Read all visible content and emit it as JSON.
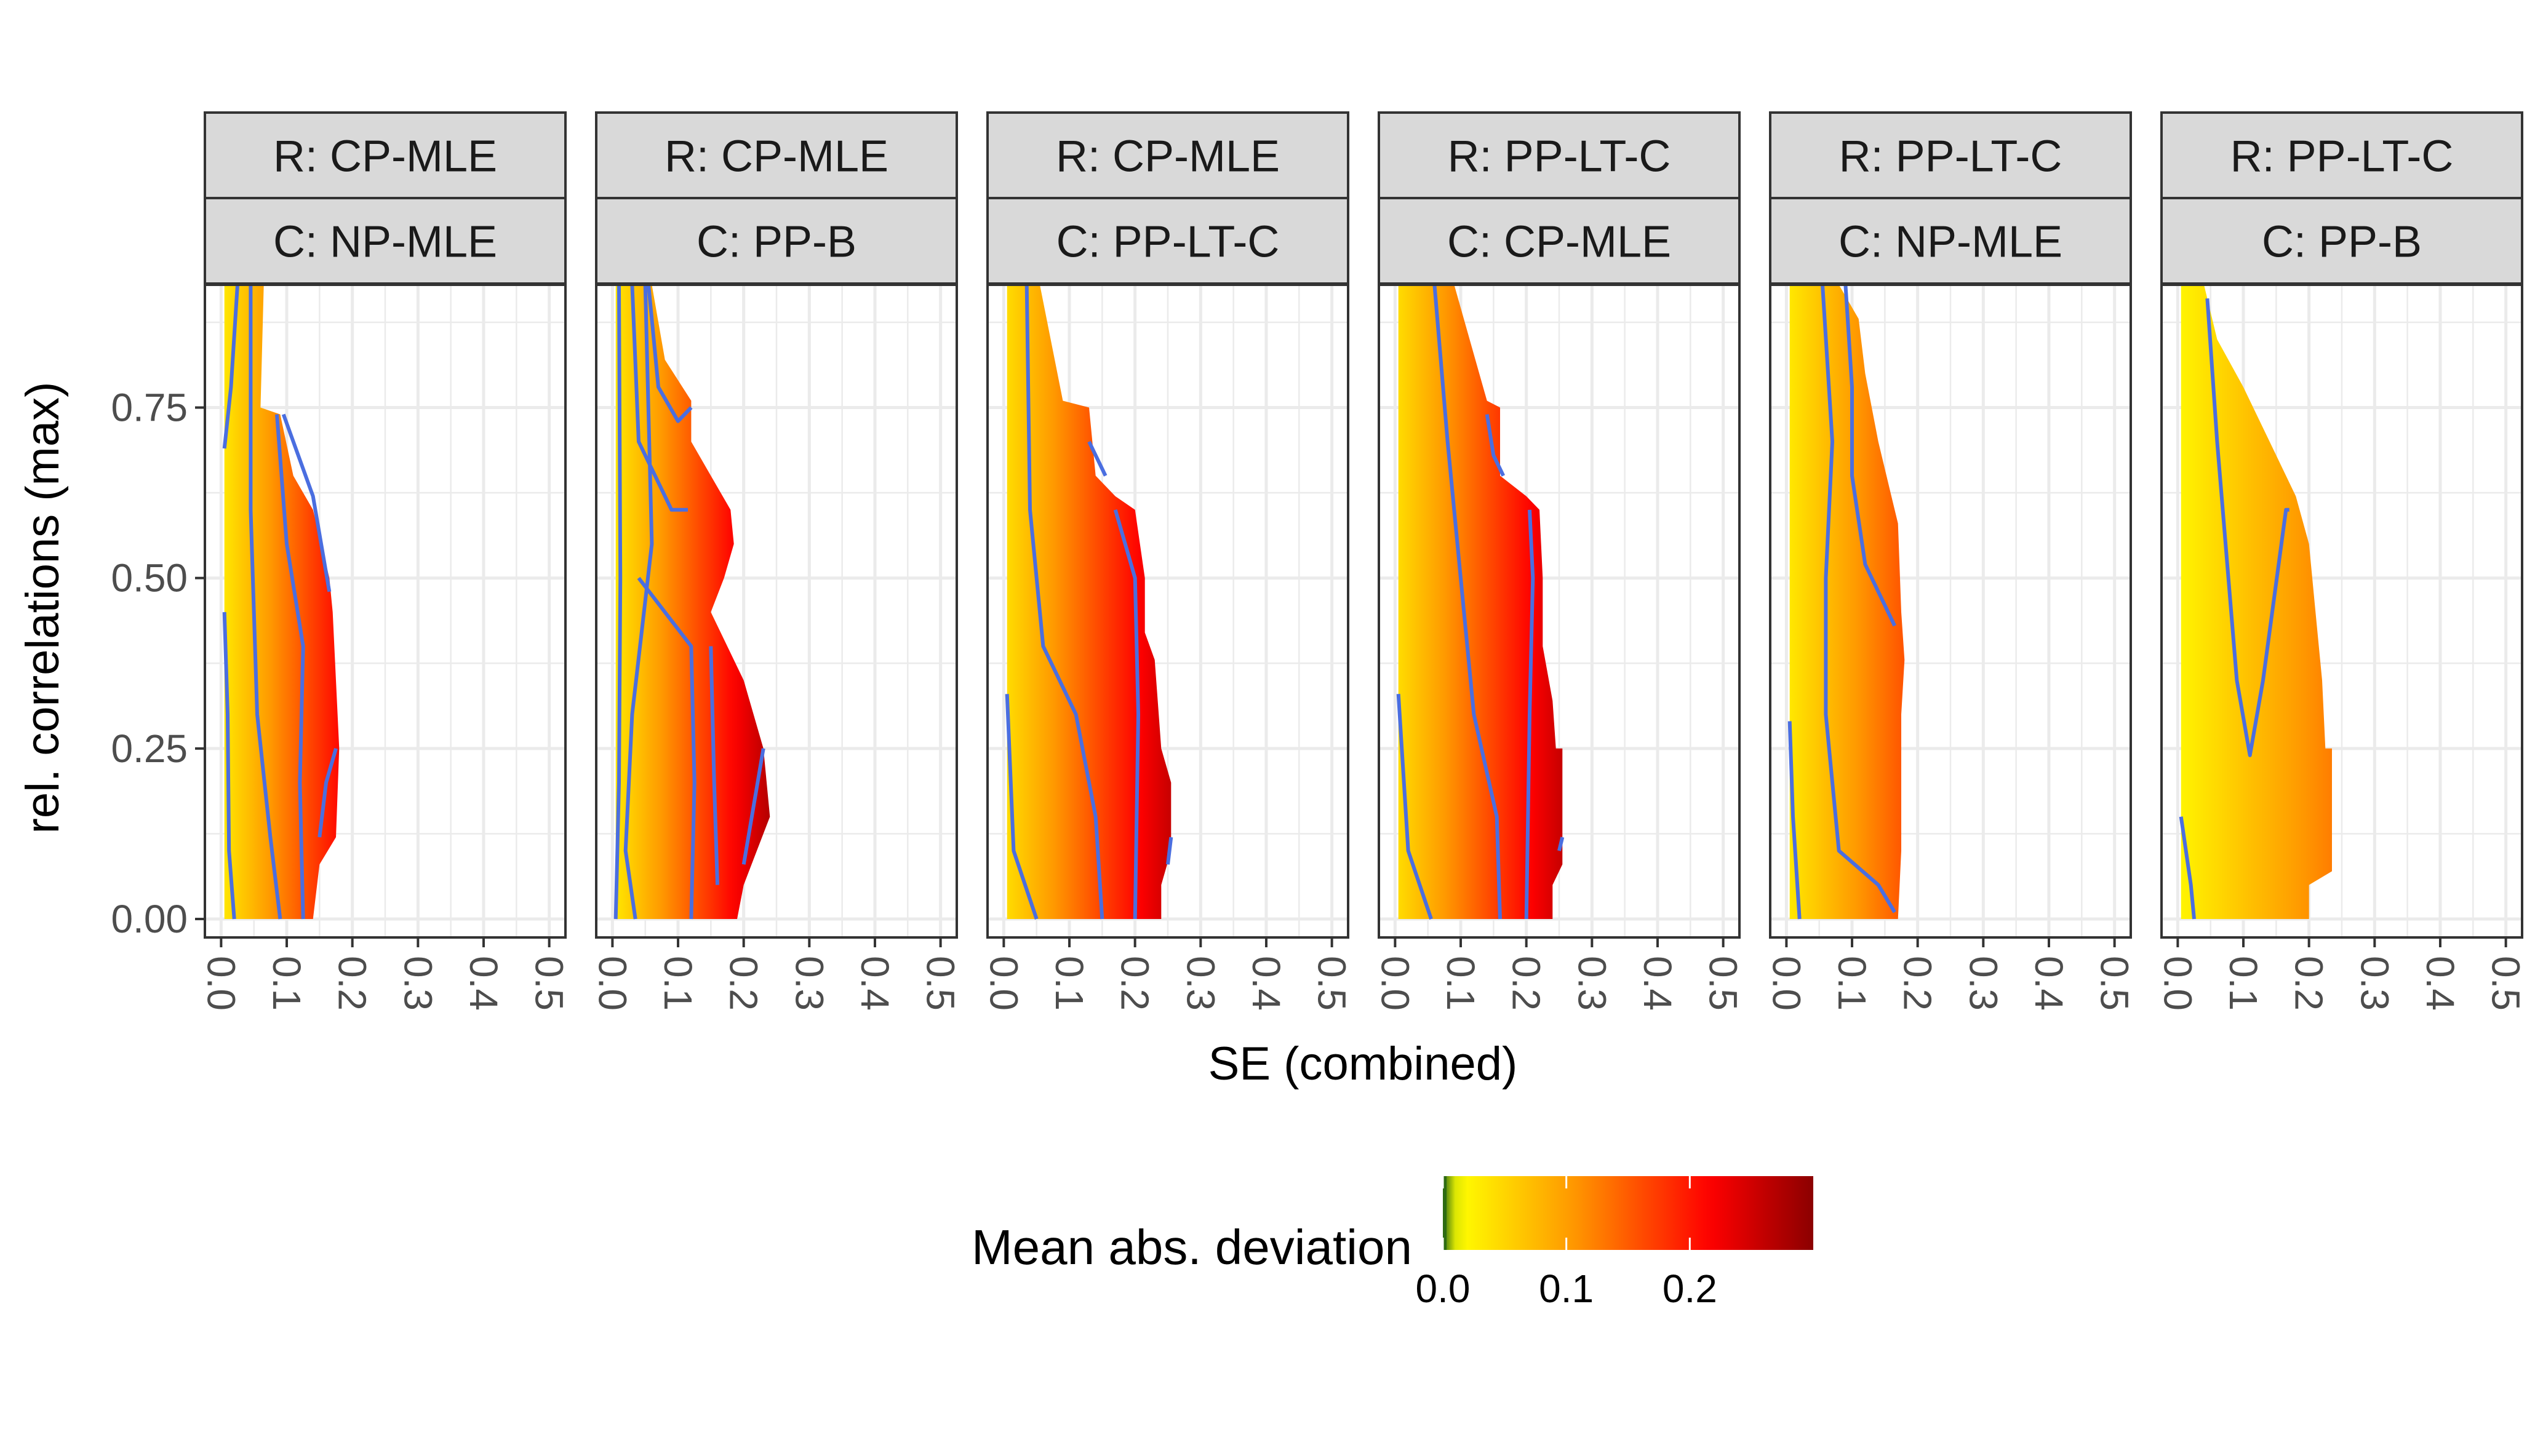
{
  "chart_data": {
    "type": "heatmap",
    "xlabel": "SE (combined)",
    "ylabel": "rel. correlations (max)",
    "xlim": [
      0,
      0.5
    ],
    "ylim": [
      0,
      0.93
    ],
    "x_ticks": [
      "0.0",
      "0.1",
      "0.2",
      "0.3",
      "0.4",
      "0.5"
    ],
    "y_ticks": [
      "0.00",
      "0.25",
      "0.50",
      "0.75"
    ],
    "x_tick_values": [
      0,
      0.1,
      0.2,
      0.3,
      0.4,
      0.5
    ],
    "y_tick_values": [
      0,
      0.25,
      0.5,
      0.75
    ],
    "grid": true,
    "legend": {
      "title": "Mean abs. deviation",
      "position": "bottom",
      "range": [
        0,
        0.3
      ],
      "ticks": [
        "0.0",
        "0.1",
        "0.2"
      ],
      "tick_values": [
        0,
        0.1,
        0.2
      ],
      "colors": [
        "#2e6b12",
        "#ffff00",
        "#ff9900",
        "#ff0000",
        "#8b0000"
      ]
    },
    "contour_color": "#4a6ee0",
    "panels": [
      {
        "strip_top": "R: CP-MLE",
        "strip_bottom": "C: NP-MLE",
        "region": [
          [
            0.005,
            0
          ],
          [
            0.005,
            0.93
          ],
          [
            0.065,
            0.93
          ],
          [
            0.06,
            0.75
          ],
          [
            0.09,
            0.74
          ],
          [
            0.11,
            0.65
          ],
          [
            0.14,
            0.6
          ],
          [
            0.165,
            0.5
          ],
          [
            0.17,
            0.45
          ],
          [
            0.175,
            0.35
          ],
          [
            0.18,
            0.25
          ],
          [
            0.175,
            0.12
          ],
          [
            0.15,
            0.08
          ],
          [
            0.14,
            0
          ]
        ],
        "contours": [
          [
            [
              0.005,
              0.69
            ],
            [
              0.015,
              0.78
            ],
            [
              0.025,
              0.93
            ]
          ],
          [
            [
              0.005,
              0.45
            ],
            [
              0.01,
              0.3
            ],
            [
              0.012,
              0.1
            ],
            [
              0.02,
              0
            ]
          ],
          [
            [
              0.045,
              0.93
            ],
            [
              0.045,
              0.6
            ],
            [
              0.055,
              0.3
            ],
            [
              0.075,
              0.12
            ],
            [
              0.09,
              0
            ]
          ],
          [
            [
              0.085,
              0.74
            ],
            [
              0.1,
              0.55
            ],
            [
              0.125,
              0.4
            ],
            [
              0.12,
              0.2
            ],
            [
              0.125,
              0
            ]
          ],
          [
            [
              0.095,
              0.74
            ],
            [
              0.14,
              0.62
            ],
            [
              0.165,
              0.48
            ]
          ],
          [
            [
              0.15,
              0.12
            ],
            [
              0.16,
              0.2
            ],
            [
              0.175,
              0.25
            ]
          ]
        ],
        "field": {
          "base": 0.03,
          "slope": 1.0,
          "yslope": 0.05
        }
      },
      {
        "strip_top": "R: CP-MLE",
        "strip_bottom": "C: PP-B",
        "region": [
          [
            0.005,
            0
          ],
          [
            0.005,
            0.93
          ],
          [
            0.06,
            0.93
          ],
          [
            0.08,
            0.82
          ],
          [
            0.12,
            0.76
          ],
          [
            0.12,
            0.7
          ],
          [
            0.15,
            0.65
          ],
          [
            0.18,
            0.6
          ],
          [
            0.185,
            0.55
          ],
          [
            0.17,
            0.5
          ],
          [
            0.15,
            0.45
          ],
          [
            0.2,
            0.35
          ],
          [
            0.23,
            0.25
          ],
          [
            0.24,
            0.15
          ],
          [
            0.22,
            0.1
          ],
          [
            0.2,
            0.05
          ],
          [
            0.19,
            0
          ]
        ],
        "contours": [
          [
            [
              0.01,
              0.93
            ],
            [
              0.012,
              0.5
            ],
            [
              0.01,
              0.2
            ],
            [
              0.005,
              0
            ]
          ],
          [
            [
              0.03,
              0.93
            ],
            [
              0.04,
              0.7
            ],
            [
              0.09,
              0.6
            ],
            [
              0.115,
              0.6
            ]
          ],
          [
            [
              0.055,
              0.93
            ],
            [
              0.07,
              0.78
            ],
            [
              0.1,
              0.73
            ],
            [
              0.12,
              0.75
            ]
          ],
          [
            [
              0.05,
              0.93
            ],
            [
              0.06,
              0.55
            ],
            [
              0.03,
              0.3
            ],
            [
              0.02,
              0.1
            ],
            [
              0.035,
              0
            ]
          ],
          [
            [
              0.04,
              0.5
            ],
            [
              0.12,
              0.4
            ],
            [
              0.125,
              0.2
            ],
            [
              0.12,
              0
            ]
          ],
          [
            [
              0.15,
              0.4
            ],
            [
              0.155,
              0.2
            ],
            [
              0.16,
              0.05
            ]
          ],
          [
            [
              0.2,
              0.08
            ],
            [
              0.23,
              0.25
            ]
          ]
        ],
        "field": {
          "base": 0.03,
          "slope": 1.0,
          "yslope": 0.03
        }
      },
      {
        "strip_top": "R: CP-MLE",
        "strip_bottom": "C: PP-LT-C",
        "region": [
          [
            0.005,
            0
          ],
          [
            0.005,
            0.93
          ],
          [
            0.055,
            0.93
          ],
          [
            0.09,
            0.76
          ],
          [
            0.13,
            0.75
          ],
          [
            0.14,
            0.65
          ],
          [
            0.17,
            0.62
          ],
          [
            0.2,
            0.6
          ],
          [
            0.215,
            0.5
          ],
          [
            0.215,
            0.42
          ],
          [
            0.23,
            0.38
          ],
          [
            0.24,
            0.25
          ],
          [
            0.255,
            0.2
          ],
          [
            0.255,
            0.1
          ],
          [
            0.24,
            0.05
          ],
          [
            0.24,
            0
          ]
        ],
        "contours": [
          [
            [
              0.035,
              0.93
            ],
            [
              0.04,
              0.6
            ],
            [
              0.06,
              0.4
            ],
            [
              0.11,
              0.3
            ],
            [
              0.14,
              0.15
            ],
            [
              0.15,
              0
            ]
          ],
          [
            [
              0.005,
              0.33
            ],
            [
              0.015,
              0.1
            ],
            [
              0.05,
              0
            ]
          ],
          [
            [
              0.13,
              0.7
            ],
            [
              0.155,
              0.65
            ]
          ],
          [
            [
              0.17,
              0.6
            ],
            [
              0.2,
              0.5
            ],
            [
              0.205,
              0.3
            ],
            [
              0.2,
              0
            ]
          ],
          [
            [
              0.25,
              0.08
            ],
            [
              0.255,
              0.12
            ]
          ]
        ],
        "field": {
          "base": 0.04,
          "slope": 0.85,
          "yslope": 0.02
        }
      },
      {
        "strip_top": "R: PP-LT-C",
        "strip_bottom": "C: CP-MLE",
        "region": [
          [
            0.005,
            0
          ],
          [
            0.005,
            0.93
          ],
          [
            0.09,
            0.93
          ],
          [
            0.14,
            0.76
          ],
          [
            0.16,
            0.75
          ],
          [
            0.16,
            0.65
          ],
          [
            0.2,
            0.62
          ],
          [
            0.22,
            0.6
          ],
          [
            0.225,
            0.5
          ],
          [
            0.225,
            0.4
          ],
          [
            0.24,
            0.32
          ],
          [
            0.245,
            0.25
          ],
          [
            0.255,
            0.25
          ],
          [
            0.255,
            0.08
          ],
          [
            0.24,
            0.05
          ],
          [
            0.24,
            0
          ]
        ],
        "contours": [
          [
            [
              0.06,
              0.93
            ],
            [
              0.08,
              0.7
            ],
            [
              0.1,
              0.5
            ],
            [
              0.12,
              0.3
            ],
            [
              0.155,
              0.15
            ],
            [
              0.16,
              0
            ]
          ],
          [
            [
              0.005,
              0.33
            ],
            [
              0.02,
              0.1
            ],
            [
              0.055,
              0
            ]
          ],
          [
            [
              0.14,
              0.74
            ],
            [
              0.15,
              0.68
            ],
            [
              0.165,
              0.65
            ]
          ],
          [
            [
              0.205,
              0.6
            ],
            [
              0.21,
              0.5
            ],
            [
              0.205,
              0.3
            ],
            [
              0.2,
              0
            ]
          ],
          [
            [
              0.25,
              0.1
            ],
            [
              0.255,
              0.12
            ]
          ]
        ],
        "field": {
          "base": 0.04,
          "slope": 0.85,
          "yslope": 0.02
        }
      },
      {
        "strip_top": "R: PP-LT-C",
        "strip_bottom": "C: NP-MLE",
        "region": [
          [
            0.005,
            0
          ],
          [
            0.005,
            0.93
          ],
          [
            0.08,
            0.93
          ],
          [
            0.11,
            0.88
          ],
          [
            0.12,
            0.8
          ],
          [
            0.14,
            0.7
          ],
          [
            0.16,
            0.62
          ],
          [
            0.17,
            0.58
          ],
          [
            0.175,
            0.45
          ],
          [
            0.18,
            0.38
          ],
          [
            0.175,
            0.3
          ],
          [
            0.175,
            0.1
          ],
          [
            0.17,
            0
          ]
        ],
        "contours": [
          [
            [
              0.005,
              0.29
            ],
            [
              0.01,
              0.15
            ],
            [
              0.02,
              0
            ]
          ],
          [
            [
              0.055,
              0.93
            ],
            [
              0.07,
              0.7
            ],
            [
              0.06,
              0.5
            ],
            [
              0.06,
              0.3
            ],
            [
              0.08,
              0.1
            ],
            [
              0.14,
              0.05
            ],
            [
              0.165,
              0.01
            ]
          ],
          [
            [
              0.09,
              0.93
            ],
            [
              0.1,
              0.78
            ],
            [
              0.1,
              0.65
            ],
            [
              0.12,
              0.52
            ],
            [
              0.165,
              0.43
            ]
          ]
        ],
        "field": {
          "base": 0.03,
          "slope": 0.7,
          "yslope": 0.02
        }
      },
      {
        "strip_top": "R: PP-LT-C",
        "strip_bottom": "C: PP-B",
        "region": [
          [
            0.005,
            0
          ],
          [
            0.005,
            0.93
          ],
          [
            0.04,
            0.93
          ],
          [
            0.06,
            0.85
          ],
          [
            0.1,
            0.78
          ],
          [
            0.14,
            0.7
          ],
          [
            0.18,
            0.62
          ],
          [
            0.2,
            0.55
          ],
          [
            0.21,
            0.45
          ],
          [
            0.22,
            0.35
          ],
          [
            0.225,
            0.25
          ],
          [
            0.235,
            0.25
          ],
          [
            0.235,
            0.07
          ],
          [
            0.2,
            0.05
          ],
          [
            0.2,
            0
          ]
        ],
        "contours": [
          [
            [
              0.005,
              0.15
            ],
            [
              0.02,
              0.05
            ],
            [
              0.025,
              0
            ]
          ],
          [
            [
              0.045,
              0.91
            ],
            [
              0.06,
              0.7
            ],
            [
              0.09,
              0.35
            ],
            [
              0.11,
              0.24
            ],
            [
              0.13,
              0.35
            ],
            [
              0.165,
              0.6
            ],
            [
              0.17,
              0.6
            ]
          ]
        ],
        "field": {
          "base": 0.02,
          "slope": 0.45,
          "yslope": 0.01
        }
      }
    ]
  }
}
